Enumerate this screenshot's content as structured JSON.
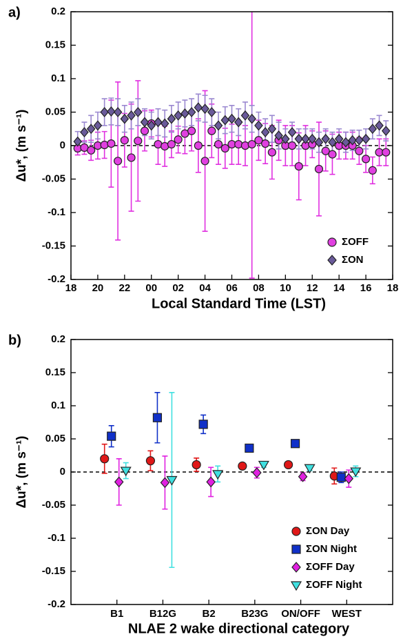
{
  "chart_data": [
    {
      "type": "scatter",
      "panel_label": "a)",
      "x_label": "Local Standard Time (LST)",
      "y_label": "Δu*, (m s⁻¹)",
      "xlim": [
        18,
        42
      ],
      "xticks": [
        18,
        20,
        22,
        {
          "value": 24,
          "label": "00"
        },
        {
          "value": 26,
          "label": "02"
        },
        {
          "value": 28,
          "label": "04"
        },
        {
          "value": 30,
          "label": "06"
        },
        {
          "value": 32,
          "label": "08"
        },
        {
          "value": 34,
          "label": "10"
        },
        {
          "value": 36,
          "label": "12"
        },
        {
          "value": 38,
          "label": "14"
        },
        {
          "value": 40,
          "label": "16"
        },
        {
          "value": 42,
          "label": "18"
        }
      ],
      "ylim": [
        -0.2,
        0.2
      ],
      "yticks": [
        -0.2,
        -0.15,
        -0.1,
        -0.05,
        0,
        0.05,
        0.1,
        0.15,
        0.2
      ],
      "reference_line": 0,
      "legend": "lower right",
      "x": [
        18.5,
        19,
        19.5,
        20,
        20.5,
        21,
        21.5,
        22,
        22.5,
        23,
        23.5,
        24,
        24.5,
        25,
        25.5,
        26,
        26.5,
        27,
        27.5,
        28,
        28.5,
        29,
        29.5,
        30,
        30.5,
        31,
        31.5,
        32,
        32.5,
        33,
        33.5,
        34,
        34.5,
        35,
        35.5,
        36,
        36.5,
        37,
        37.5,
        38,
        38.5,
        39,
        39.5,
        40,
        40.5,
        41,
        41.5
      ],
      "series": [
        {
          "name": "ΣOFF",
          "marker": "circle",
          "color": "#e040e0",
          "error_color": "#e030e0",
          "values": [
            -0.004,
            -0.003,
            -0.007,
            0.0,
            0.001,
            0.003,
            -0.023,
            0.008,
            -0.018,
            0.007,
            0.022,
            0.033,
            0.002,
            -0.001,
            0.002,
            0.009,
            0.018,
            0.022,
            0.0,
            -0.023,
            0.022,
            0.002,
            -0.004,
            0.002,
            0.002,
            0.0,
            0.002,
            0.008,
            0.003,
            -0.01,
            0.008,
            0.0,
            0.0,
            -0.031,
            0.0,
            0.002,
            -0.035,
            -0.008,
            -0.013,
            0.0,
            0.0,
            0.0,
            -0.008,
            -0.02,
            -0.037,
            -0.01,
            -0.01
          ],
          "errors": [
            0.01,
            0.01,
            0.015,
            0.02,
            0.02,
            0.065,
            0.118,
            0.04,
            0.08,
            0.09,
            0.03,
            0.02,
            0.03,
            0.03,
            0.02,
            0.02,
            0.03,
            0.03,
            0.04,
            0.105,
            0.04,
            0.03,
            0.03,
            0.03,
            0.03,
            0.03,
            0.2,
            0.03,
            0.03,
            0.04,
            0.03,
            0.03,
            0.03,
            0.05,
            0.03,
            0.02,
            0.07,
            0.03,
            0.03,
            0.02,
            0.02,
            0.02,
            0.02,
            0.02,
            0.02,
            0.02,
            0.02
          ]
        },
        {
          "name": "ΣON",
          "marker": "diamond",
          "color": "#6a5a9a",
          "error_color": "#9a88d0",
          "values": [
            0.006,
            0.02,
            0.025,
            0.03,
            0.05,
            0.051,
            0.05,
            0.04,
            0.045,
            0.05,
            0.035,
            0.03,
            0.035,
            0.033,
            0.04,
            0.045,
            0.048,
            0.05,
            0.057,
            0.055,
            0.05,
            0.03,
            0.038,
            0.04,
            0.035,
            0.045,
            0.04,
            0.03,
            0.02,
            0.025,
            0.015,
            0.01,
            0.02,
            0.01,
            0.01,
            0.01,
            0.005,
            0.01,
            0.005,
            0.01,
            0.005,
            0.008,
            0.008,
            0.01,
            0.025,
            0.03,
            0.022
          ],
          "errors": [
            0.015,
            0.015,
            0.02,
            0.02,
            0.02,
            0.02,
            0.02,
            0.02,
            0.02,
            0.02,
            0.02,
            0.02,
            0.02,
            0.02,
            0.02,
            0.02,
            0.02,
            0.02,
            0.02,
            0.02,
            0.02,
            0.02,
            0.02,
            0.02,
            0.02,
            0.02,
            0.02,
            0.02,
            0.02,
            0.02,
            0.02,
            0.015,
            0.015,
            0.015,
            0.015,
            0.015,
            0.015,
            0.015,
            0.015,
            0.015,
            0.015,
            0.015,
            0.015,
            0.015,
            0.015,
            0.015,
            0.015
          ]
        }
      ]
    },
    {
      "type": "category_scatter",
      "panel_label": "b)",
      "x_label": "NLAE 2 wake directional category",
      "y_label": "Δu*, (m s⁻¹)",
      "categories": [
        null,
        "B1",
        "B12G",
        "B2",
        "B23G",
        "ON/OFF",
        "WEST"
      ],
      "ylim": [
        -0.2,
        0.2
      ],
      "yticks": [
        -0.2,
        -0.15,
        -0.1,
        -0.05,
        0,
        0.05,
        0.1,
        0.15,
        0.2
      ],
      "reference_line": 0,
      "legend": "lower right",
      "series": [
        {
          "name": "ΣON Day",
          "marker": "circle",
          "color": "#e01818",
          "error_color": "#e01818",
          "values": [
            null,
            0.02,
            0.017,
            0.011,
            0.009,
            0.011,
            -0.006
          ],
          "errors": [
            null,
            0.022,
            0.015,
            0.01,
            0.004,
            0.003,
            0.012
          ]
        },
        {
          "name": "ΣON Night",
          "marker": "square",
          "color": "#1030c8",
          "error_color": "#1030c8",
          "values": [
            null,
            0.054,
            0.082,
            0.072,
            0.036,
            0.043,
            -0.008
          ],
          "errors": [
            null,
            0.016,
            0.038,
            0.014,
            0.004,
            0.004,
            0.008
          ]
        },
        {
          "name": "ΣOFF Day",
          "marker": "diamond",
          "color": "#e020e0",
          "error_color": "#e020e0",
          "values": [
            null,
            -0.015,
            -0.016,
            -0.015,
            -0.001,
            -0.007,
            -0.01
          ],
          "errors": [
            null,
            0.035,
            0.04,
            0.022,
            0.008,
            0.006,
            0.013
          ]
        },
        {
          "name": "ΣOFF Night",
          "marker": "triangle",
          "color": "#40e0e0",
          "error_color": "#40e0e0",
          "values": [
            null,
            0.002,
            -0.012,
            -0.003,
            0.011,
            0.006,
            0.001
          ],
          "errors": [
            null,
            0.012,
            0.132,
            0.012,
            0.004,
            0.004,
            0.008
          ]
        }
      ]
    }
  ]
}
